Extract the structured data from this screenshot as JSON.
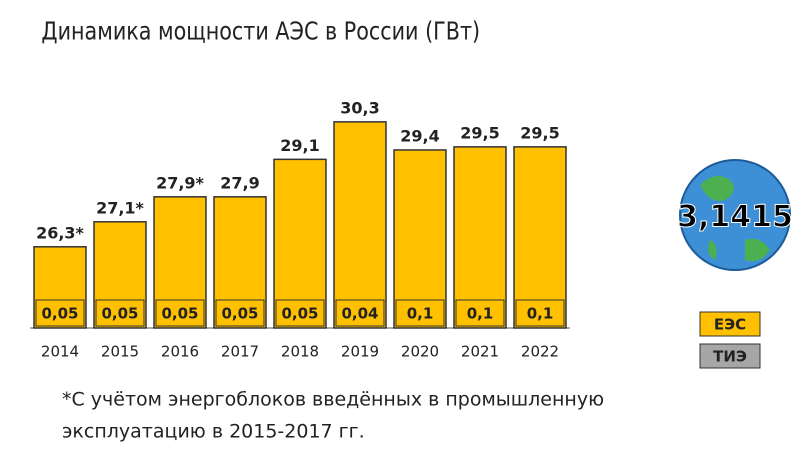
{
  "chart_data": {
    "type": "bar",
    "title": "Динамика мощности АЭС в России (ГВт)",
    "categories": [
      "2014",
      "2015",
      "2016",
      "2017",
      "2018",
      "2019",
      "2020",
      "2021",
      "2022"
    ],
    "series": [
      {
        "name": "ЕЭС",
        "color": "#ffc000",
        "values": [
          26.3,
          27.1,
          27.9,
          27.9,
          29.1,
          30.3,
          29.4,
          29.5,
          29.5
        ],
        "value_labels": [
          "26,3*",
          "27,1*",
          "27,9*",
          "27,9",
          "29,1",
          "30,3",
          "29,4",
          "29,5",
          "29,5"
        ]
      },
      {
        "name": "ТИЭ",
        "color": "#a6a6a6",
        "values": [
          0.05,
          0.05,
          0.05,
          0.05,
          0.05,
          0.04,
          0.1,
          0.1,
          0.1
        ],
        "value_labels": [
          "0,05",
          "0,05",
          "0,05",
          "0,05",
          "0,05",
          "0,04",
          "0,1",
          "0,1",
          "0,1"
        ]
      }
    ],
    "ylim": [
      23.7,
      31
    ],
    "footnote": [
      "*С учётом энергоблоков введённых в промышленную",
      "эксплуатацию в 2015-2017 гг."
    ],
    "logo_text": "3,1415"
  }
}
